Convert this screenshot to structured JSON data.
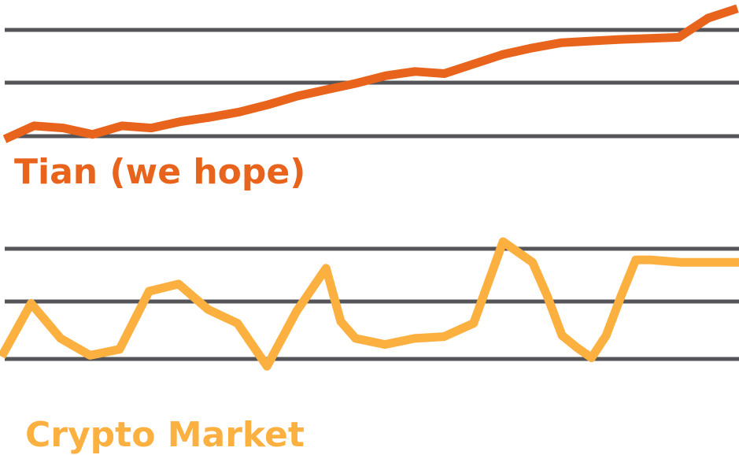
{
  "colors": {
    "tian": "#e8641c",
    "crypto": "#fbb040",
    "grid": "#555559",
    "background": "#ffffff"
  },
  "chart_data": [
    {
      "type": "line",
      "grid": true,
      "series": [
        {
          "name": "Tian (we hope)",
          "color": "#e8641c",
          "x": [
            0,
            2,
            4,
            6,
            8,
            10,
            12,
            14,
            16,
            18,
            20,
            22,
            24,
            26,
            28,
            30,
            32,
            34,
            36,
            38,
            40,
            42,
            44,
            46,
            48,
            50
          ],
          "y": [
            0.15,
            0.4,
            0.36,
            0.24,
            0.4,
            0.36,
            0.48,
            0.56,
            0.66,
            0.8,
            0.96,
            1.08,
            1.2,
            1.34,
            1.42,
            1.38,
            1.56,
            1.74,
            1.86,
            1.96,
            1.99,
            2.02,
            2.04,
            2.06,
            2.42,
            2.6
          ]
        }
      ],
      "ylim": [
        0,
        2.7
      ]
    },
    {
      "type": "line",
      "grid": true,
      "series": [
        {
          "name": "Crypto Market",
          "color": "#fbb040",
          "x": [
            0,
            2,
            4,
            6,
            8,
            10,
            12,
            14,
            16,
            18,
            20,
            22,
            23,
            24,
            26,
            28,
            30,
            32,
            34,
            36,
            37,
            38,
            39,
            40,
            41,
            42,
            43,
            44,
            46,
            48,
            49,
            50
          ],
          "y": [
            0.0,
            0.88,
            0.3,
            0.02,
            0.12,
            1.08,
            1.2,
            0.78,
            0.55,
            -0.16,
            0.75,
            1.46,
            0.58,
            0.3,
            0.2,
            0.3,
            0.33,
            0.55,
            1.9,
            1.56,
            1.0,
            0.35,
            0.15,
            -0.02,
            0.35,
            1.0,
            1.6,
            1.6,
            1.56,
            1.56,
            1.56,
            1.56
          ]
        }
      ],
      "ylim": [
        -0.3,
        2.2
      ]
    }
  ]
}
